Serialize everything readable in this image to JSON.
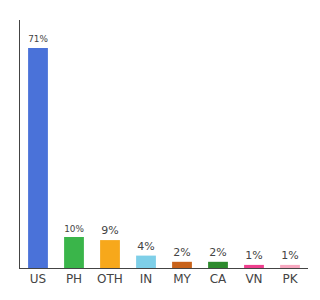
{
  "chart_data": {
    "type": "bar",
    "categories": [
      "US",
      "PH",
      "OTH",
      "IN",
      "MY",
      "CA",
      "VN",
      "PK"
    ],
    "values": [
      71,
      10,
      9,
      4,
      2,
      2,
      1,
      1
    ],
    "value_labels": [
      "71%",
      "10%",
      "9%",
      "4%",
      "2%",
      "2%",
      "1%",
      "1%"
    ],
    "data_labels": true,
    "colors": [
      "#4a72d9",
      "#3ab54a",
      "#f7a81b",
      "#7ecfe8",
      "#c8621a",
      "#2d8a2d",
      "#ee3f8e",
      "#f7a8c0"
    ],
    "ylim": [
      0,
      80
    ],
    "yticks": [],
    "grid": false,
    "tick_labels": "x"
  }
}
